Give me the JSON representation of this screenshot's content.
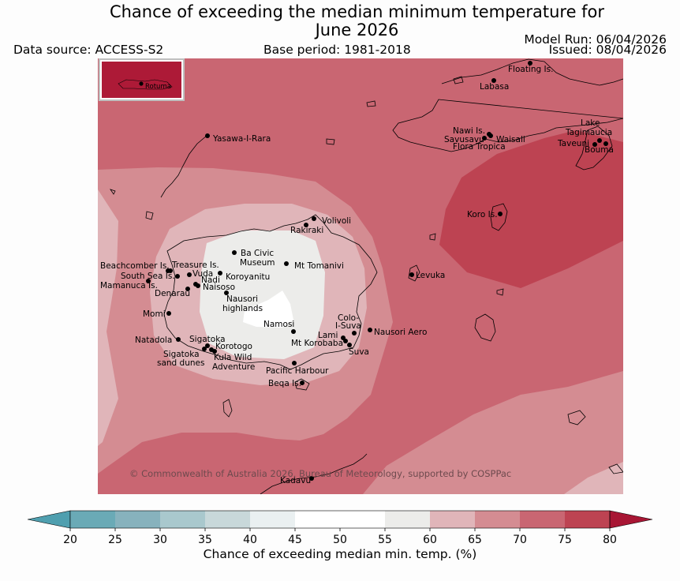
{
  "title": {
    "line1": "Chance of exceeding the median minimum temperature for",
    "line2": "June 2026"
  },
  "header": {
    "data_source": "Data source: ACCESS-S2",
    "base_period": "Base period: 1981-2018",
    "model_run": "Model Run: 06/04/2026",
    "issued": "Issued: 08/04/2026"
  },
  "map": {
    "inset_label": "Rotuma",
    "copyright": "© Commonwealth of Australia 2026, Bureau of Meteorology, supported by COSPPac",
    "places": [
      {
        "name": "Floating Is."
      },
      {
        "name": "Labasa"
      },
      {
        "name": "Yasawa-I-Rara"
      },
      {
        "name": "Nawi Is."
      },
      {
        "name": "Savusavu"
      },
      {
        "name": "Waisali"
      },
      {
        "name": "Flora Tropica"
      },
      {
        "name": "Lake"
      },
      {
        "name": "Tagimaucia"
      },
      {
        "name": "Taveuni"
      },
      {
        "name": "Bouma"
      },
      {
        "name": "Koro Is."
      },
      {
        "name": "Volivoli"
      },
      {
        "name": "Rakiraki"
      },
      {
        "name": "Ba Civic"
      },
      {
        "name": "Museum"
      },
      {
        "name": "Mt Tomanivi"
      },
      {
        "name": "Beachcomber Is."
      },
      {
        "name": "Treasure Is."
      },
      {
        "name": "South Sea Is."
      },
      {
        "name": "Vuda"
      },
      {
        "name": "Koroyanitu"
      },
      {
        "name": "Nadi"
      },
      {
        "name": "Mamanuca Is."
      },
      {
        "name": "Naisoso"
      },
      {
        "name": "Denarau"
      },
      {
        "name": "Levuka"
      },
      {
        "name": "Nausori"
      },
      {
        "name": "highlands"
      },
      {
        "name": "Momi"
      },
      {
        "name": "Namosi"
      },
      {
        "name": "Colo-"
      },
      {
        "name": "I-Suva"
      },
      {
        "name": "Nausori Aero"
      },
      {
        "name": "Lami"
      },
      {
        "name": "Natadola"
      },
      {
        "name": "Sigatoka"
      },
      {
        "name": "Mt Korobaba"
      },
      {
        "name": "Korotogo"
      },
      {
        "name": "Suva"
      },
      {
        "name": "Sigatoka"
      },
      {
        "name": "sand dunes"
      },
      {
        "name": "Kula Wild"
      },
      {
        "name": "Adventure"
      },
      {
        "name": "Pacific Harbour"
      },
      {
        "name": "Beqa Is."
      },
      {
        "name": "Kadavu"
      }
    ]
  },
  "legend": {
    "label": "Chance of exceeding median min. temp. (%)",
    "ticks": [
      "20",
      "25",
      "30",
      "35",
      "40",
      "45",
      "50",
      "55",
      "60",
      "65",
      "70",
      "75",
      "80"
    ],
    "colors": [
      "#6aaab6",
      "#87b2bd",
      "#a9c8cd",
      "#c8d8da",
      "#eaf0f1",
      "#ffffff",
      "#ffffff",
      "#ececea",
      "#e0b5b9",
      "#d48c92",
      "#c96672",
      "#bd4352"
    ],
    "under_color": "#4f9faf",
    "over_color": "#a81634"
  },
  "colors": {
    "c55_60": "#ececea",
    "c60_65": "#e0b5b9",
    "c65_70": "#d48c92",
    "c70_75": "#c96672",
    "c75_80": "#bd4352",
    "inset_fill": "#ad1a37"
  }
}
